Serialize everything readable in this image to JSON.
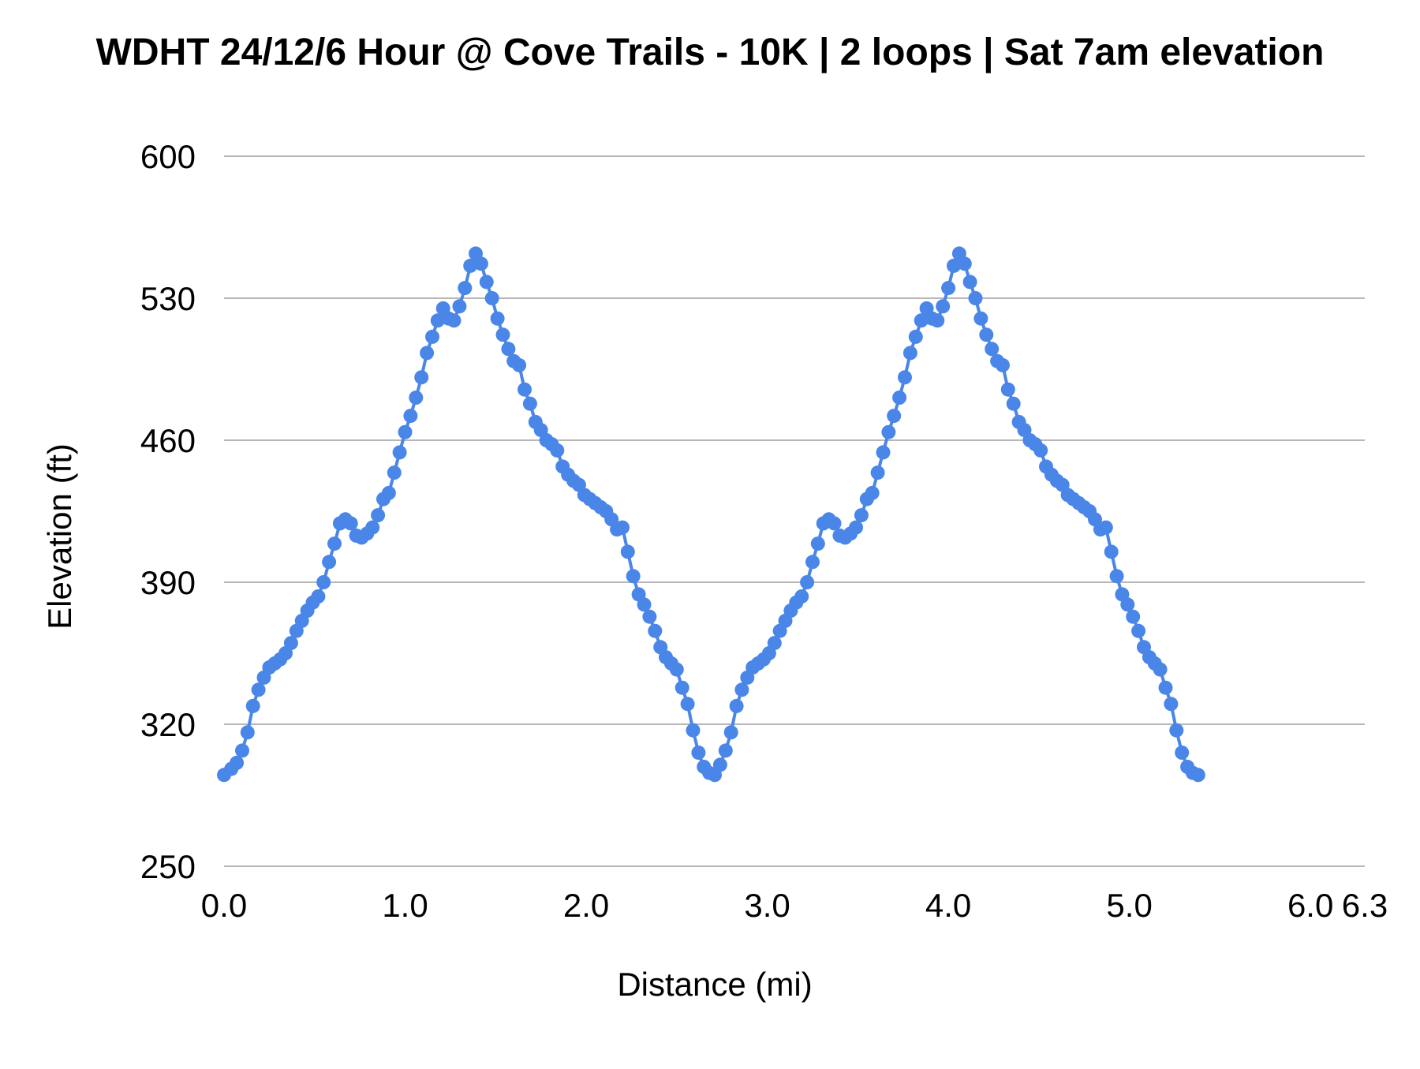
{
  "chart_data": {
    "type": "line",
    "title": "WDHT 24/12/6 Hour @ Cove Trails - 10K | 2 loops | Sat 7am elevation",
    "xlabel": "Distance (mi)",
    "ylabel": "Elevation (ft)",
    "xlim": [
      0,
      6.3
    ],
    "ylim": [
      250,
      600
    ],
    "x_ticks": [
      0.0,
      1.0,
      2.0,
      3.0,
      4.0,
      5.0,
      6.0,
      6.3
    ],
    "x_tick_labels": [
      "0.0",
      "1.0",
      "2.0",
      "3.0",
      "4.0",
      "5.0",
      "6.0",
      "6.3"
    ],
    "y_ticks": [
      250,
      320,
      390,
      460,
      530,
      600
    ],
    "y_tick_labels": [
      "250",
      "320",
      "390",
      "460",
      "530",
      "600"
    ],
    "grid": true,
    "legend": "none",
    "series": [
      {
        "color": "#4a86e8",
        "marker": "circle",
        "points": [
          [
            0.0,
            295
          ],
          [
            0.04,
            298
          ],
          [
            0.07,
            301
          ],
          [
            0.1,
            307
          ],
          [
            0.13,
            316
          ],
          [
            0.16,
            329
          ],
          [
            0.19,
            337
          ],
          [
            0.22,
            343
          ],
          [
            0.25,
            348
          ],
          [
            0.28,
            350
          ],
          [
            0.31,
            352
          ],
          [
            0.34,
            355
          ],
          [
            0.37,
            360
          ],
          [
            0.4,
            366
          ],
          [
            0.43,
            371
          ],
          [
            0.46,
            376
          ],
          [
            0.49,
            380
          ],
          [
            0.52,
            383
          ],
          [
            0.55,
            390
          ],
          [
            0.58,
            400
          ],
          [
            0.61,
            409
          ],
          [
            0.64,
            419
          ],
          [
            0.67,
            421
          ],
          [
            0.7,
            419
          ],
          [
            0.73,
            413
          ],
          [
            0.76,
            412
          ],
          [
            0.79,
            414
          ],
          [
            0.82,
            417
          ],
          [
            0.85,
            423
          ],
          [
            0.88,
            431
          ],
          [
            0.91,
            434
          ],
          [
            0.94,
            444
          ],
          [
            0.97,
            454
          ],
          [
            1.0,
            464
          ],
          [
            1.03,
            472
          ],
          [
            1.06,
            481
          ],
          [
            1.09,
            491
          ],
          [
            1.12,
            503
          ],
          [
            1.15,
            511
          ],
          [
            1.18,
            519
          ],
          [
            1.21,
            525
          ],
          [
            1.24,
            520
          ],
          [
            1.27,
            519
          ],
          [
            1.3,
            526
          ],
          [
            1.33,
            535
          ],
          [
            1.36,
            546
          ],
          [
            1.39,
            552
          ],
          [
            1.42,
            547
          ],
          [
            1.45,
            538
          ],
          [
            1.48,
            530
          ],
          [
            1.51,
            520
          ],
          [
            1.54,
            512
          ],
          [
            1.57,
            505
          ],
          [
            1.6,
            499
          ],
          [
            1.63,
            497
          ],
          [
            1.66,
            485
          ],
          [
            1.69,
            478
          ],
          [
            1.72,
            469
          ],
          [
            1.75,
            465
          ],
          [
            1.78,
            460
          ],
          [
            1.81,
            458
          ],
          [
            1.84,
            455
          ],
          [
            1.87,
            447
          ],
          [
            1.9,
            443
          ],
          [
            1.93,
            440
          ],
          [
            1.96,
            438
          ],
          [
            1.99,
            433
          ],
          [
            2.02,
            431
          ],
          [
            2.05,
            429
          ],
          [
            2.08,
            427
          ],
          [
            2.11,
            425
          ],
          [
            2.14,
            421
          ],
          [
            2.17,
            416
          ],
          [
            2.2,
            417
          ],
          [
            2.23,
            405
          ],
          [
            2.26,
            393
          ],
          [
            2.29,
            384
          ],
          [
            2.32,
            379
          ],
          [
            2.35,
            373
          ],
          [
            2.38,
            366
          ],
          [
            2.41,
            358
          ],
          [
            2.44,
            353
          ],
          [
            2.47,
            350
          ],
          [
            2.5,
            347
          ],
          [
            2.53,
            338
          ],
          [
            2.56,
            330
          ],
          [
            2.59,
            317
          ],
          [
            2.62,
            306
          ],
          [
            2.65,
            299
          ],
          [
            2.68,
            296
          ],
          [
            2.71,
            295
          ],
          [
            2.74,
            300
          ],
          [
            2.77,
            307
          ],
          [
            2.8,
            316
          ],
          [
            2.83,
            329
          ],
          [
            2.86,
            337
          ],
          [
            2.89,
            343
          ],
          [
            2.92,
            348
          ],
          [
            2.95,
            350
          ],
          [
            2.98,
            352
          ],
          [
            3.01,
            355
          ],
          [
            3.04,
            360
          ],
          [
            3.07,
            366
          ],
          [
            3.1,
            371
          ],
          [
            3.13,
            376
          ],
          [
            3.16,
            380
          ],
          [
            3.19,
            383
          ],
          [
            3.22,
            390
          ],
          [
            3.25,
            400
          ],
          [
            3.28,
            409
          ],
          [
            3.31,
            419
          ],
          [
            3.34,
            421
          ],
          [
            3.37,
            419
          ],
          [
            3.4,
            413
          ],
          [
            3.43,
            412
          ],
          [
            3.46,
            414
          ],
          [
            3.49,
            417
          ],
          [
            3.52,
            423
          ],
          [
            3.55,
            431
          ],
          [
            3.58,
            434
          ],
          [
            3.61,
            444
          ],
          [
            3.64,
            454
          ],
          [
            3.67,
            464
          ],
          [
            3.7,
            472
          ],
          [
            3.73,
            481
          ],
          [
            3.76,
            491
          ],
          [
            3.79,
            503
          ],
          [
            3.82,
            511
          ],
          [
            3.85,
            519
          ],
          [
            3.88,
            525
          ],
          [
            3.91,
            520
          ],
          [
            3.94,
            519
          ],
          [
            3.97,
            526
          ],
          [
            4.0,
            535
          ],
          [
            4.03,
            546
          ],
          [
            4.06,
            552
          ],
          [
            4.09,
            547
          ],
          [
            4.12,
            538
          ],
          [
            4.15,
            530
          ],
          [
            4.18,
            520
          ],
          [
            4.21,
            512
          ],
          [
            4.24,
            505
          ],
          [
            4.27,
            499
          ],
          [
            4.3,
            497
          ],
          [
            4.33,
            485
          ],
          [
            4.36,
            478
          ],
          [
            4.39,
            469
          ],
          [
            4.42,
            465
          ],
          [
            4.45,
            460
          ],
          [
            4.48,
            458
          ],
          [
            4.51,
            455
          ],
          [
            4.54,
            447
          ],
          [
            4.57,
            443
          ],
          [
            4.6,
            440
          ],
          [
            4.63,
            438
          ],
          [
            4.66,
            433
          ],
          [
            4.69,
            431
          ],
          [
            4.72,
            429
          ],
          [
            4.75,
            427
          ],
          [
            4.78,
            425
          ],
          [
            4.81,
            421
          ],
          [
            4.84,
            416
          ],
          [
            4.87,
            417
          ],
          [
            4.9,
            405
          ],
          [
            4.93,
            393
          ],
          [
            4.96,
            384
          ],
          [
            4.99,
            379
          ],
          [
            5.02,
            373
          ],
          [
            5.05,
            366
          ],
          [
            5.08,
            358
          ],
          [
            5.11,
            353
          ],
          [
            5.14,
            350
          ],
          [
            5.17,
            347
          ],
          [
            5.2,
            338
          ],
          [
            5.23,
            330
          ],
          [
            5.26,
            317
          ],
          [
            5.29,
            306
          ],
          [
            5.32,
            299
          ],
          [
            5.35,
            296
          ],
          [
            5.38,
            295
          ]
        ]
      }
    ]
  }
}
